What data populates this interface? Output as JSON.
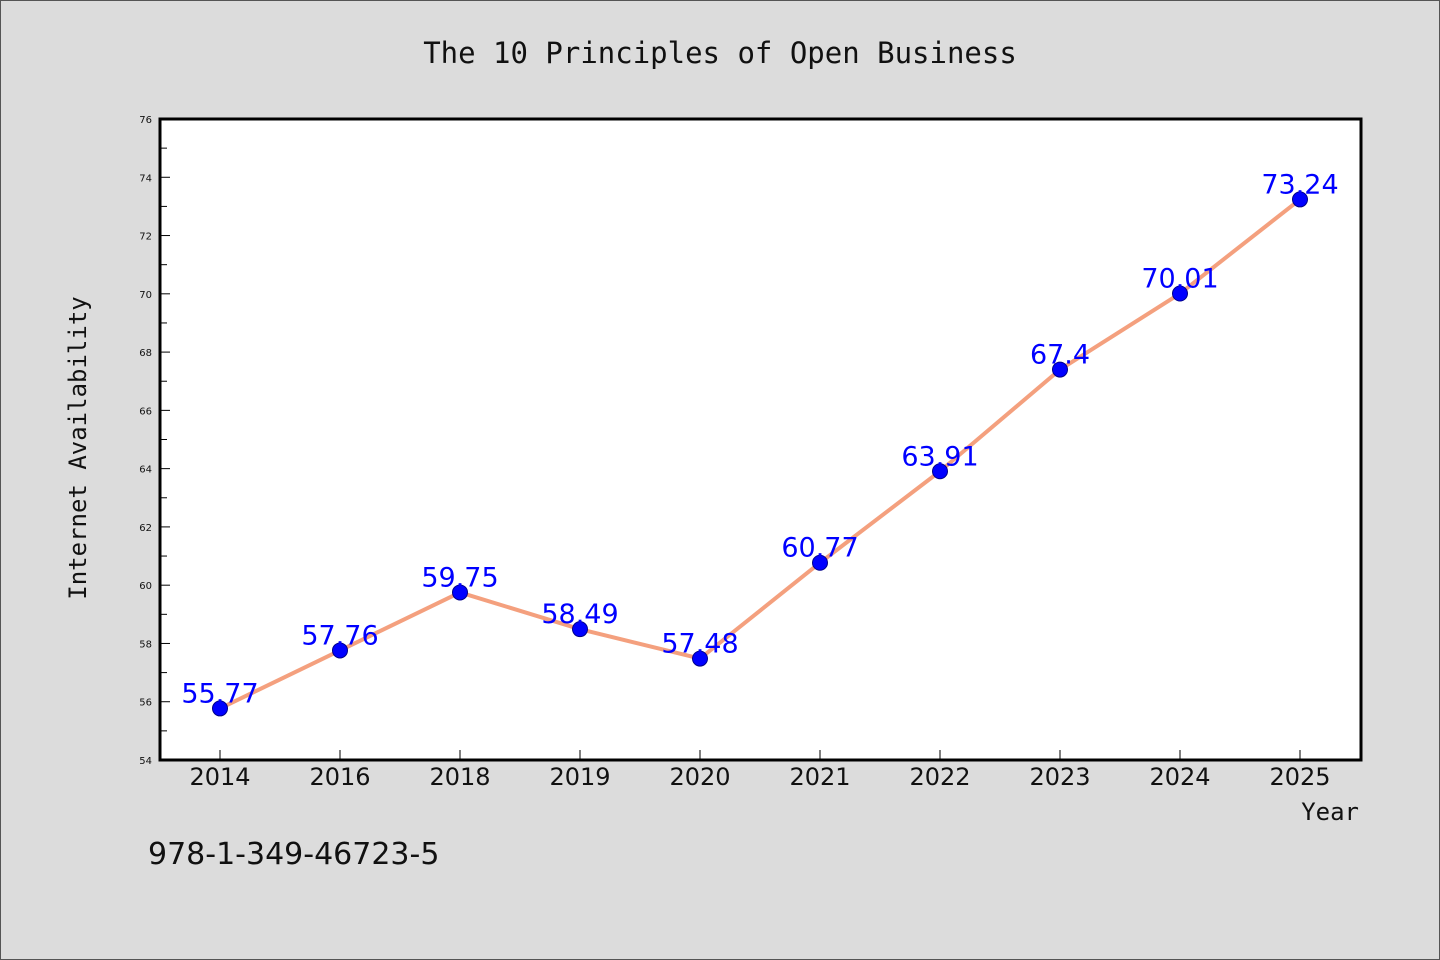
{
  "chart_data": {
    "type": "line",
    "title": "The 10 Principles of Open Business",
    "xlabel": "Year",
    "ylabel": "Internet Availability",
    "categories": [
      "2014",
      "2016",
      "2018",
      "2019",
      "2020",
      "2021",
      "2022",
      "2023",
      "2024",
      "2025"
    ],
    "values": [
      55.77,
      57.76,
      59.75,
      58.49,
      57.48,
      60.77,
      63.91,
      67.4,
      70.01,
      73.24
    ],
    "data_labels": [
      "55.77",
      "57.76",
      "59.75",
      "58.49",
      "57.48",
      "60.77",
      "63.91",
      "67.4",
      "70.01",
      "73.24"
    ],
    "ylim": [
      54,
      76
    ],
    "yticks": [
      "54",
      "56",
      "58",
      "60",
      "62",
      "64",
      "66",
      "68",
      "70",
      "72",
      "74",
      "76"
    ],
    "grid": false,
    "legend": "none",
    "colors": {
      "line": "#f4a07e",
      "marker": "#0000ff",
      "data_label": "#0000ff",
      "background": "#dcdcdc",
      "plot_background": "#ffffff"
    }
  },
  "footnote": "978-1-349-46723-5"
}
